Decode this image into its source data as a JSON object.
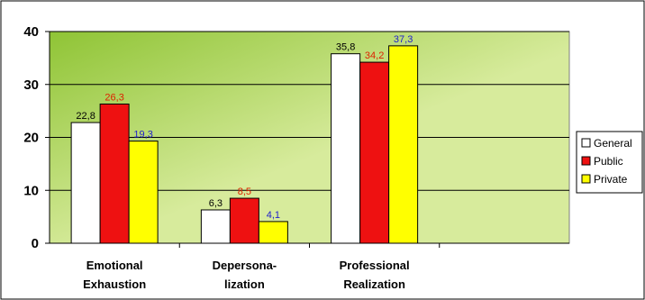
{
  "chart_data": {
    "type": "bar",
    "categories": [
      [
        "Emotional",
        "Exhaustion"
      ],
      [
        "Depersona-",
        "lization"
      ],
      [
        "Professional",
        "Realization"
      ]
    ],
    "category_slots": 4,
    "series": [
      {
        "name": "General",
        "values": [
          22.8,
          6.3,
          35.8
        ],
        "labels": [
          "22,8",
          "6,3",
          "35,8"
        ],
        "color": "#ffffff",
        "label_color": "#000000"
      },
      {
        "name": "Public",
        "values": [
          26.3,
          8.5,
          34.2
        ],
        "labels": [
          "26,3",
          "8,5",
          "34,2"
        ],
        "color": "#ee1111",
        "label_color": "#dd2200"
      },
      {
        "name": "Private",
        "values": [
          19.3,
          4.1,
          37.3
        ],
        "labels": [
          "19,3",
          "4,1",
          "37,3"
        ],
        "color": "#ffff00",
        "label_color": "#2222cc"
      }
    ],
    "y_ticks": [
      "0",
      "10",
      "20",
      "30",
      "40"
    ],
    "ylim": [
      0,
      40
    ],
    "grid": true,
    "legend": "right",
    "title": "",
    "xlabel": "",
    "ylabel": "",
    "plot_gradient": [
      "#8fc435",
      "#d7eb9c"
    ]
  }
}
